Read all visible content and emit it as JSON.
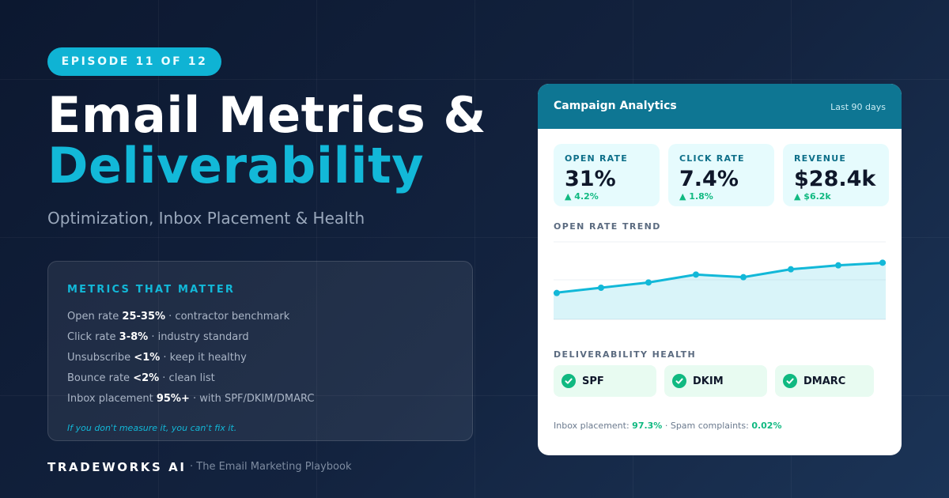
{
  "episode": "EPISODE 11 OF 12",
  "title_line1": "Email Metrics &",
  "title_line2": "Deliverability",
  "subtitle": "Optimization, Inbox Placement & Health",
  "metrics_panel": {
    "heading": "METRICS THAT MATTER",
    "rows": [
      {
        "label": "Open rate",
        "value": "25-35%",
        "note": "· contractor benchmark"
      },
      {
        "label": "Click rate",
        "value": "3-8%",
        "note": "· industry standard"
      },
      {
        "label": "Unsubscribe",
        "value": "<1%",
        "note": "· keep it healthy"
      },
      {
        "label": "Bounce rate",
        "value": "<2%",
        "note": "· clean list"
      },
      {
        "label": "Inbox placement",
        "value": "95%+",
        "note": "· with SPF/DKIM/DMARC"
      }
    ],
    "tagline": "If you don't measure it, you can't fix it."
  },
  "brand": {
    "name": "TRADEWORKS AI",
    "subtitle": "· The Email Marketing Playbook"
  },
  "card": {
    "title": "Campaign Analytics",
    "range": "Last 90 days",
    "kpis": [
      {
        "label": "OPEN RATE",
        "value": "31%",
        "delta": "▲ 4.2%"
      },
      {
        "label": "CLICK RATE",
        "value": "7.4%",
        "delta": "▲ 1.8%"
      },
      {
        "label": "REVENUE",
        "value": "$28.4k",
        "delta": "▲ $6.2k"
      }
    ],
    "trend_label": "OPEN RATE TREND",
    "health_label": "DELIVERABILITY HEALTH",
    "health_items": [
      "SPF",
      "DKIM",
      "DMARC"
    ],
    "footer": {
      "inbox_label": "Inbox placement:",
      "inbox_value": "97.3%",
      "separator": "·",
      "spam_label": "Spam complaints:",
      "spam_value": "0.02%"
    }
  },
  "colors": {
    "accent": "#12b8d8",
    "header": "#0e7693",
    "success": "#10b981"
  },
  "chart_data": {
    "type": "area",
    "title": "OPEN RATE TREND",
    "x": [
      1,
      2,
      3,
      4,
      5,
      6,
      7,
      8
    ],
    "values": [
      10,
      12,
      14,
      17,
      16,
      19,
      20.5,
      21.5
    ],
    "ylim": [
      0,
      30
    ],
    "grid": true,
    "color": "#12b8d8"
  }
}
